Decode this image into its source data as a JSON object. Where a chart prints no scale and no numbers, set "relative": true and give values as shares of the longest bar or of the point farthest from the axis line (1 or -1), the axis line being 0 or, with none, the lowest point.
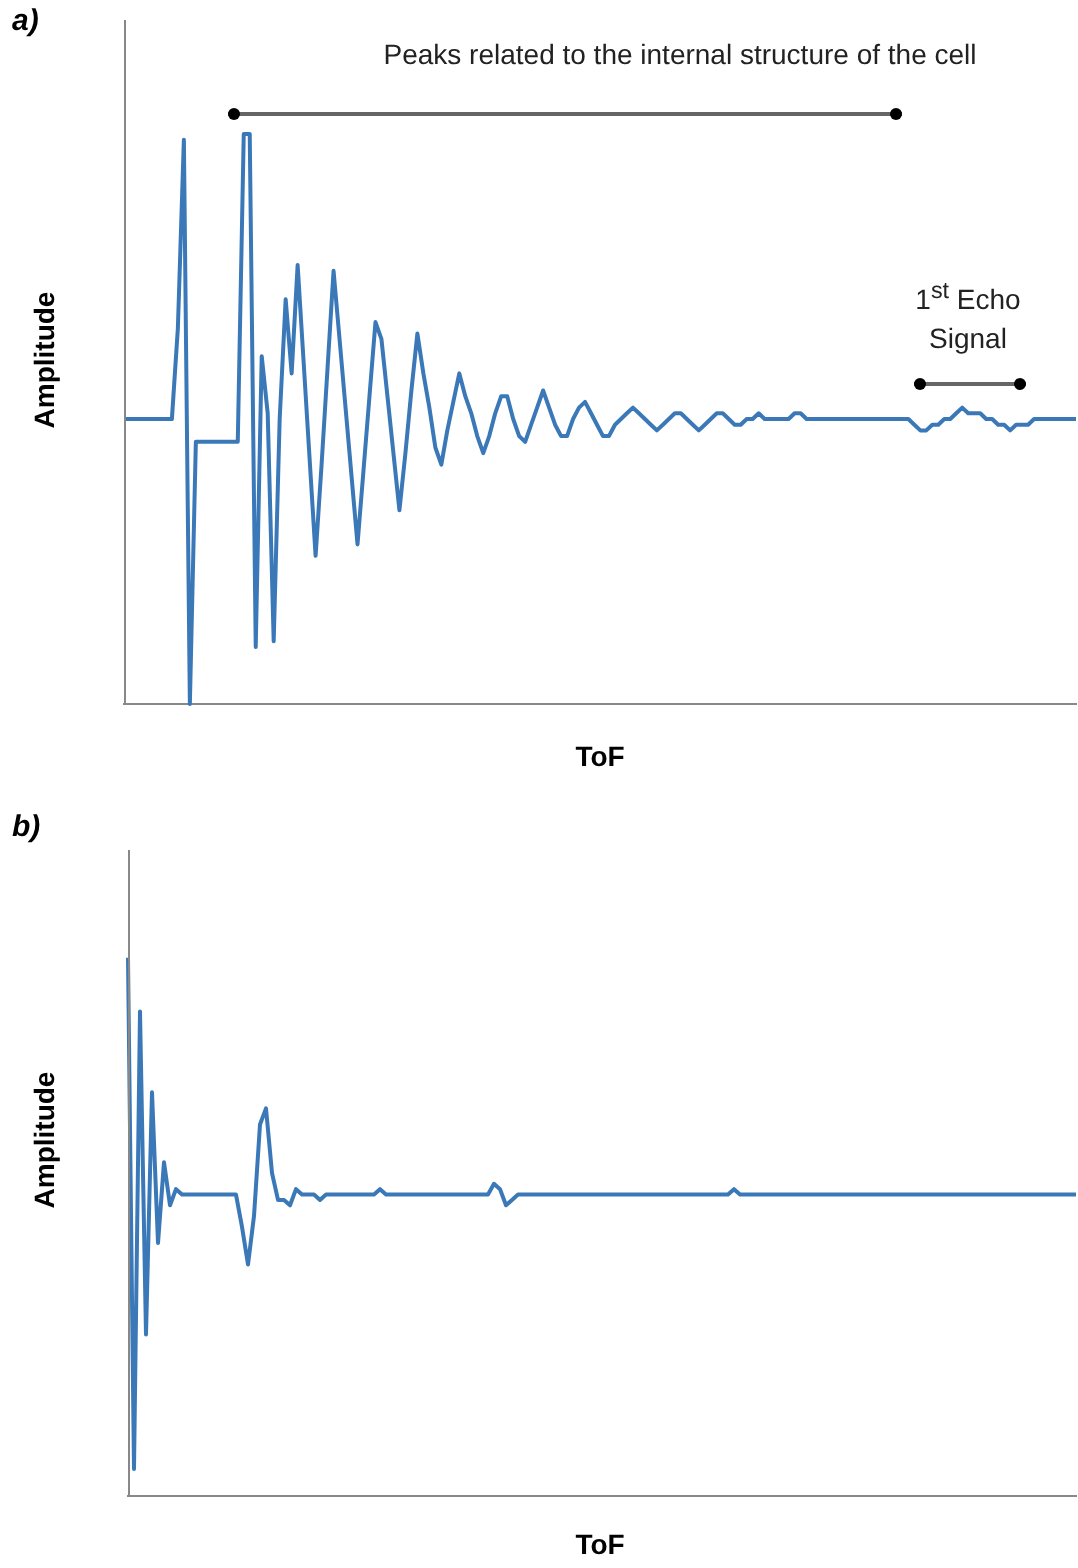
{
  "chart_data": [
    {
      "type": "line",
      "title": "a)",
      "xlabel": "ToF",
      "ylabel": "Amplitude",
      "relative": true,
      "marker": "none",
      "annotations": [
        "Peaks related to the internal structure of the cell",
        "1$^{st}$ Echo Signal"
      ],
      "categories": [
        null,
        null,
        null,
        null,
        null,
        null,
        null,
        null,
        null,
        null,
        null,
        null,
        null,
        null,
        null,
        null,
        null,
        null,
        null,
        null,
        null,
        null,
        null,
        null,
        null,
        null,
        null,
        null,
        null,
        null,
        null,
        null,
        null,
        null,
        null,
        null,
        null,
        null,
        null,
        null,
        null,
        null,
        null,
        null,
        null,
        null,
        null,
        null,
        null,
        null,
        null,
        null,
        null,
        null,
        null,
        null,
        null,
        null,
        null,
        null,
        null,
        null,
        null,
        null,
        null,
        null,
        null,
        null,
        null,
        null,
        null,
        null,
        null,
        null,
        null,
        null,
        null,
        null,
        null,
        null,
        null,
        null,
        null,
        null,
        null,
        null,
        null,
        null,
        null,
        null,
        null,
        null,
        null,
        null,
        null,
        null,
        null,
        null,
        null,
        null,
        null,
        null,
        null,
        null,
        null,
        null,
        null,
        null,
        null,
        null,
        null,
        null,
        null,
        null,
        null,
        null,
        null,
        null,
        null,
        null,
        null,
        null,
        null,
        null,
        null,
        null,
        null,
        null,
        null,
        null,
        null,
        null,
        null,
        null,
        null,
        null,
        null,
        null,
        null,
        null,
        null,
        null,
        null,
        null,
        null,
        null,
        null,
        null,
        null,
        null,
        null,
        null,
        null,
        null,
        null,
        null,
        null,
        null,
        null,
        null
      ],
      "series": [
        {
          "color": "#3b78b8",
          "values": [
            0.5,
            0.5,
            0.5,
            0.5,
            0.5,
            0.5,
            0.5,
            0.5,
            0.5,
            0.66,
            0.99,
            0,
            0.46,
            0.46,
            0.46,
            0.46,
            0.46,
            0.46,
            0.46,
            0.46,
            1,
            1,
            0.1,
            0.61,
            0.51,
            0.11,
            0.5,
            0.71,
            0.58,
            0.77,
            0.6,
            0.43,
            0.26,
            0.42,
            0.59,
            0.76,
            0.64,
            0.52,
            0.4,
            0.28,
            0.41,
            0.54,
            0.67,
            0.64,
            0.54,
            0.44,
            0.34,
            0.44,
            0.55,
            0.65,
            0.58,
            0.52,
            0.45,
            0.42,
            0.48,
            0.53,
            0.58,
            0.54,
            0.51,
            0.47,
            0.44,
            0.47,
            0.51,
            0.54,
            0.54,
            0.5,
            0.47,
            0.46,
            0.49,
            0.52,
            0.55,
            0.52,
            0.49,
            0.47,
            0.47,
            0.5,
            0.52,
            0.53,
            0.51,
            0.49,
            0.47,
            0.47,
            0.49,
            0.5,
            0.51,
            0.52,
            0.51,
            0.5,
            0.49,
            0.48,
            0.49,
            0.5,
            0.51,
            0.51,
            0.5,
            0.49,
            0.48,
            0.49,
            0.5,
            0.51,
            0.51,
            0.5,
            0.49,
            0.49,
            0.5,
            0.5,
            0.51,
            0.5,
            0.5,
            0.5,
            0.5,
            0.5,
            0.51,
            0.51,
            0.5,
            0.5,
            0.5,
            0.5,
            0.5,
            0.5,
            0.5,
            0.5,
            0.5,
            0.5,
            0.5,
            0.5,
            0.5,
            0.5,
            0.5,
            0.5,
            0.5,
            0.5,
            0.49,
            0.48,
            0.48,
            0.49,
            0.49,
            0.5,
            0.5,
            0.51,
            0.52,
            0.51,
            0.51,
            0.51,
            0.5,
            0.5,
            0.49,
            0.49,
            0.48,
            0.49,
            0.49,
            0.49,
            0.5,
            0.5,
            0.5,
            0.5,
            0.5,
            0.5,
            0.5,
            0.5
          ]
        }
      ]
    },
    {
      "type": "line",
      "title": "b)",
      "xlabel": "ToF",
      "ylabel": "Amplitude",
      "relative": true,
      "marker": "none",
      "categories": [
        null,
        null,
        null,
        null,
        null,
        null,
        null,
        null,
        null,
        null,
        null,
        null,
        null,
        null,
        null,
        null,
        null,
        null,
        null,
        null,
        null,
        null,
        null,
        null,
        null,
        null,
        null,
        null,
        null,
        null,
        null,
        null,
        null,
        null,
        null,
        null,
        null,
        null,
        null,
        null,
        null,
        null,
        null,
        null,
        null,
        null,
        null,
        null,
        null,
        null,
        null,
        null,
        null,
        null,
        null,
        null,
        null,
        null,
        null,
        null,
        null,
        null,
        null,
        null,
        null,
        null,
        null,
        null,
        null,
        null,
        null,
        null,
        null,
        null,
        null,
        null,
        null,
        null,
        null,
        null,
        null,
        null,
        null,
        null,
        null,
        null,
        null,
        null,
        null,
        null,
        null,
        null,
        null,
        null,
        null,
        null,
        null,
        null,
        null,
        null,
        null,
        null,
        null,
        null,
        null,
        null,
        null,
        null,
        null,
        null,
        null,
        null,
        null,
        null,
        null,
        null,
        null,
        null,
        null,
        null,
        null,
        null,
        null,
        null,
        null,
        null,
        null,
        null,
        null,
        null,
        null,
        null,
        null,
        null,
        null,
        null,
        null,
        null,
        null,
        null,
        null,
        null,
        null,
        null,
        null,
        null,
        null,
        null,
        null,
        null,
        null,
        null,
        null,
        null,
        null,
        null,
        null,
        null,
        null
      ],
      "series": [
        {
          "color": "#3b78b8",
          "values": [
            1,
            0.05,
            0.9,
            0.3,
            0.75,
            0.47,
            0.62,
            0.54,
            0.57,
            0.56,
            0.56,
            0.56,
            0.56,
            0.56,
            0.56,
            0.56,
            0.56,
            0.56,
            0.56,
            0.5,
            0.43,
            0.52,
            0.69,
            0.72,
            0.6,
            0.55,
            0.55,
            0.54,
            0.57,
            0.56,
            0.56,
            0.56,
            0.55,
            0.56,
            0.56,
            0.56,
            0.56,
            0.56,
            0.56,
            0.56,
            0.56,
            0.56,
            0.57,
            0.56,
            0.56,
            0.56,
            0.56,
            0.56,
            0.56,
            0.56,
            0.56,
            0.56,
            0.56,
            0.56,
            0.56,
            0.56,
            0.56,
            0.56,
            0.56,
            0.56,
            0.56,
            0.58,
            0.57,
            0.54,
            0.55,
            0.56,
            0.56,
            0.56,
            0.56,
            0.56,
            0.56,
            0.56,
            0.56,
            0.56,
            0.56,
            0.56,
            0.56,
            0.56,
            0.56,
            0.56,
            0.56,
            0.56,
            0.56,
            0.56,
            0.56,
            0.56,
            0.56,
            0.56,
            0.56,
            0.56,
            0.56,
            0.56,
            0.56,
            0.56,
            0.56,
            0.56,
            0.56,
            0.56,
            0.56,
            0.56,
            0.56,
            0.57,
            0.56,
            0.56,
            0.56,
            0.56,
            0.56,
            0.56,
            0.56,
            0.56,
            0.56,
            0.56,
            0.56,
            0.56,
            0.56,
            0.56,
            0.56,
            0.56,
            0.56,
            0.56,
            0.56,
            0.56,
            0.56,
            0.56,
            0.56,
            0.56,
            0.56,
            0.56,
            0.56,
            0.56,
            0.56,
            0.56,
            0.56,
            0.56,
            0.56,
            0.56,
            0.56,
            0.56,
            0.56,
            0.56,
            0.56,
            0.56,
            0.56,
            0.56,
            0.56,
            0.56,
            0.56,
            0.56,
            0.56,
            0.56,
            0.56,
            0.56,
            0.56,
            0.56,
            0.56,
            0.56,
            0.56,
            0.56,
            0.56
          ]
        }
      ]
    }
  ]
}
